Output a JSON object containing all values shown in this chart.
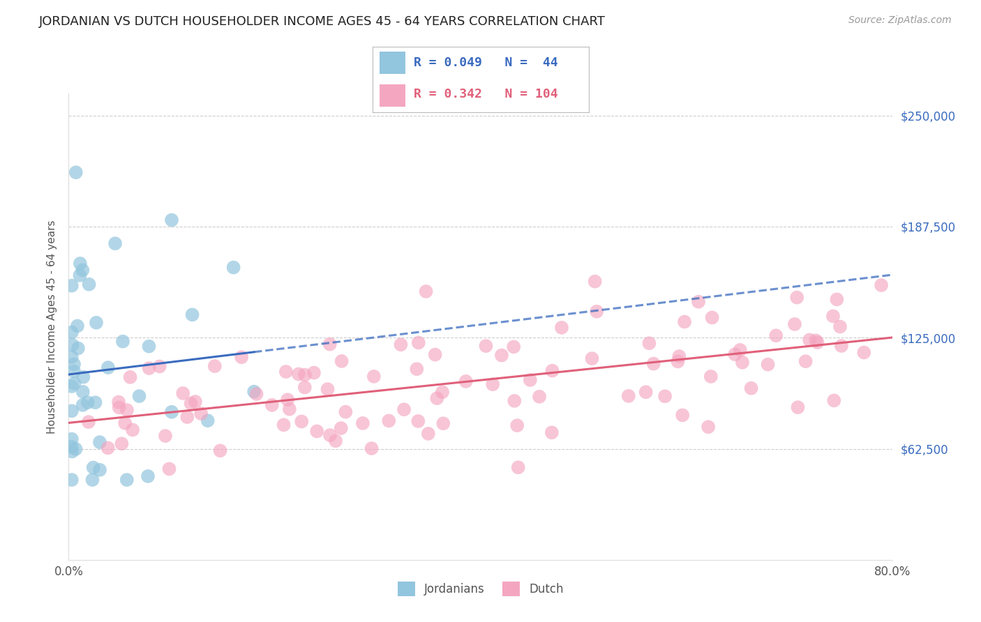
{
  "title": "JORDANIAN VS DUTCH HOUSEHOLDER INCOME AGES 45 - 64 YEARS CORRELATION CHART",
  "source_text": "Source: ZipAtlas.com",
  "ylabel": "Householder Income Ages 45 - 64 years",
  "xlim": [
    0.0,
    0.8
  ],
  "ylim": [
    0,
    262500
  ],
  "yticks": [
    0,
    62500,
    125000,
    187500,
    250000
  ],
  "ytick_labels": [
    "",
    "$62,500",
    "$125,000",
    "$187,500",
    "$250,000"
  ],
  "xticks": [
    0.0,
    0.1,
    0.2,
    0.3,
    0.4,
    0.5,
    0.6,
    0.7,
    0.8
  ],
  "xtick_labels": [
    "0.0%",
    "",
    "",
    "",
    "",
    "",
    "",
    "",
    "80.0%"
  ],
  "jordanians_R": 0.049,
  "jordanians_N": 44,
  "dutch_R": 0.342,
  "dutch_N": 104,
  "blue_dot_color": "#92c5de",
  "pink_dot_color": "#f4a6c0",
  "blue_line_color": "#3a6bbf",
  "pink_line_color": "#e0607a",
  "background_color": "#ffffff",
  "grid_color": "#c8c8c8",
  "title_color": "#222222",
  "axis_label_color": "#555555",
  "ytick_label_color": "#3a6bbf",
  "source_color": "#999999",
  "legend_border_color": "#bbbbbb"
}
